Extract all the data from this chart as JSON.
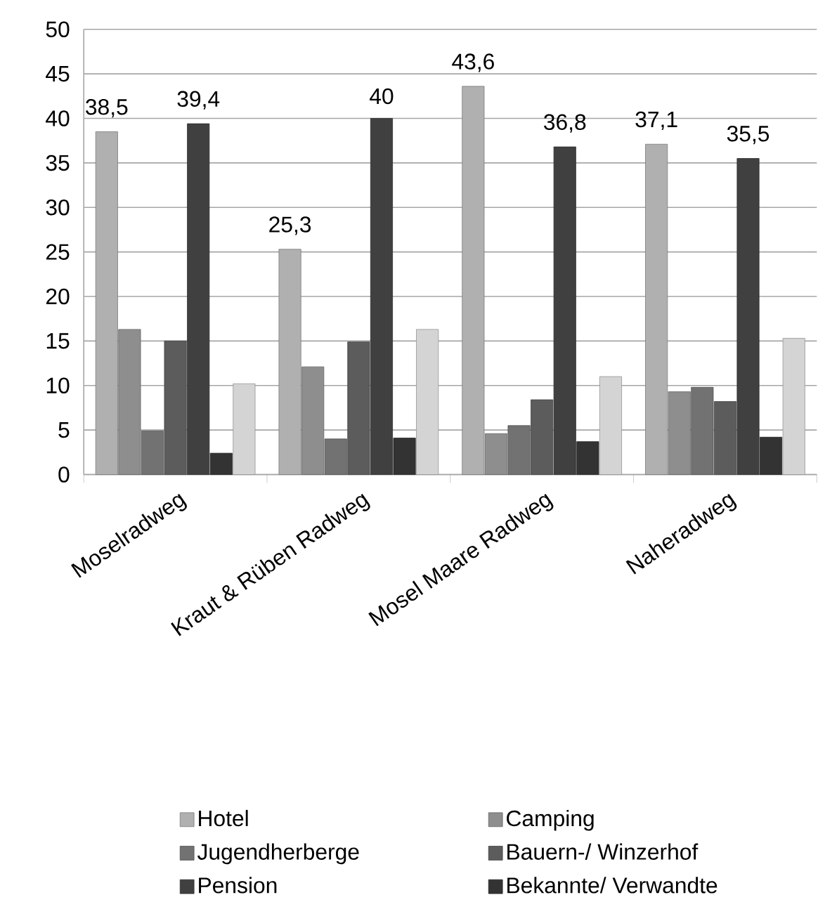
{
  "chart_data": {
    "type": "bar",
    "categories": [
      "Moselradweg",
      "Kraut & Rüben Radweg",
      "Mosel Maare Radweg",
      "Naheradweg"
    ],
    "series": [
      {
        "name": "Hotel",
        "color": "#b0b0b0",
        "values": [
          38.5,
          25.3,
          43.6,
          37.1
        ],
        "value_labels": [
          "38,5",
          "25,3",
          "43,6",
          "37,1"
        ]
      },
      {
        "name": "Camping",
        "color": "#8e8e8e",
        "values": [
          16.3,
          12.1,
          4.6,
          9.3
        ]
      },
      {
        "name": "Jugendherberge",
        "color": "#727272",
        "values": [
          4.9,
          4.0,
          5.5,
          9.8
        ]
      },
      {
        "name": "Bauern-/ Winzerhof",
        "color": "#5c5c5c",
        "values": [
          15.0,
          14.9,
          8.4,
          8.2
        ]
      },
      {
        "name": "Pension",
        "color": "#404040",
        "values": [
          39.4,
          40,
          36.8,
          35.5
        ],
        "value_labels": [
          "39,4",
          "40",
          "36,8",
          "35,5"
        ]
      },
      {
        "name": "Bekannte/ Verwandte",
        "color": "#333333",
        "values": [
          2.4,
          4.1,
          3.7,
          4.2
        ]
      },
      {
        "color": "#d4d4d4",
        "values": [
          10.2,
          16.3,
          11.0,
          15.3
        ]
      }
    ],
    "ylim": [
      0,
      50
    ],
    "yticks": [
      0,
      5,
      10,
      15,
      20,
      25,
      30,
      35,
      40,
      45,
      50
    ],
    "grid": "y",
    "legend": "bottom"
  }
}
